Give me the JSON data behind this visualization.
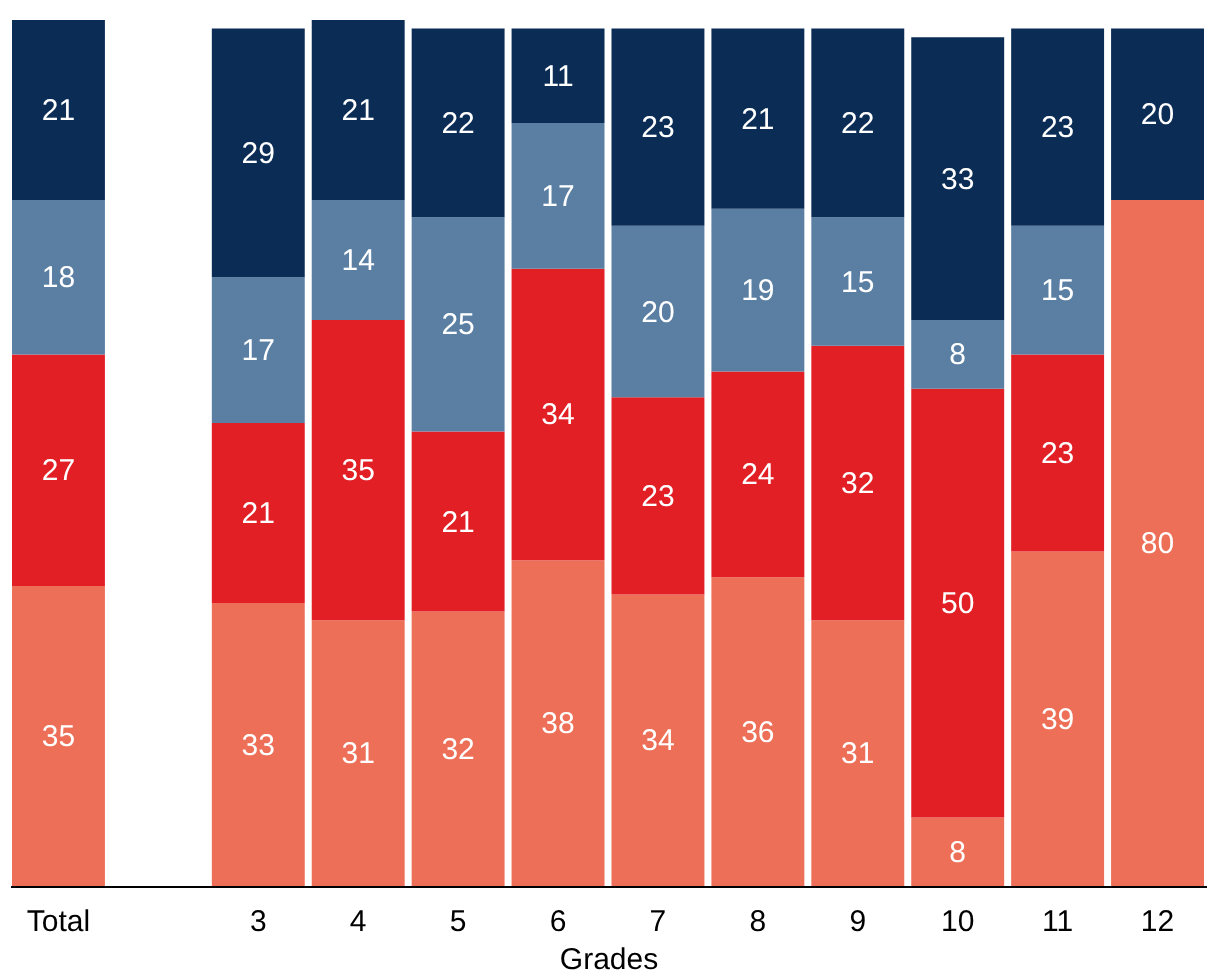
{
  "chart_data": {
    "type": "bar",
    "stacked": true,
    "data_labels": true,
    "xlabel": "Grades",
    "categories": [
      "Total",
      null,
      "3",
      "4",
      "5",
      "6",
      "7",
      "8",
      "9",
      "10",
      "11",
      "12"
    ],
    "series": [
      {
        "color": "#ee6f57",
        "values": [
          35,
          null,
          33,
          31,
          32,
          38,
          34,
          36,
          31,
          8,
          39,
          80
        ]
      },
      {
        "color": "#e31f26",
        "values": [
          27,
          null,
          21,
          35,
          21,
          34,
          23,
          24,
          32,
          50,
          23,
          null
        ]
      },
      {
        "color": "#5a7fa3",
        "values": [
          18,
          null,
          17,
          14,
          25,
          17,
          20,
          19,
          15,
          8,
          15,
          null
        ]
      },
      {
        "color": "#0b2d55",
        "values": [
          21,
          null,
          29,
          21,
          22,
          11,
          23,
          21,
          22,
          33,
          23,
          20
        ]
      }
    ],
    "grid": false,
    "legend": false
  }
}
